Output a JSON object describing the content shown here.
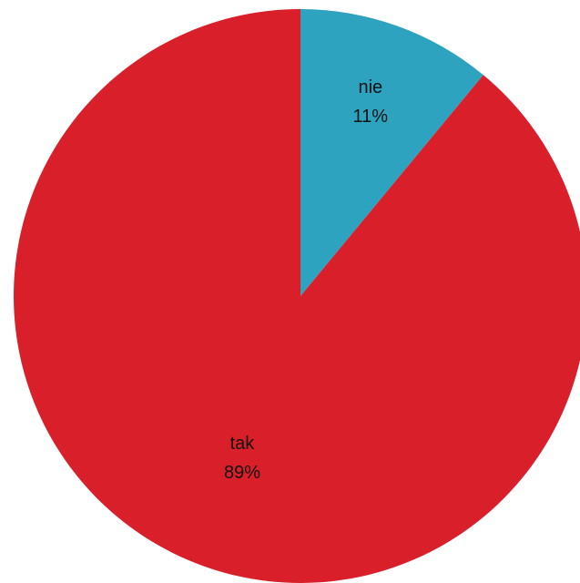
{
  "chart_data": {
    "type": "pie",
    "categories": [
      "nie",
      "tak"
    ],
    "values": [
      11,
      89
    ],
    "value_labels": [
      "11%",
      "89%"
    ],
    "colors": [
      "#2ea3c0",
      "#d9202a"
    ]
  }
}
